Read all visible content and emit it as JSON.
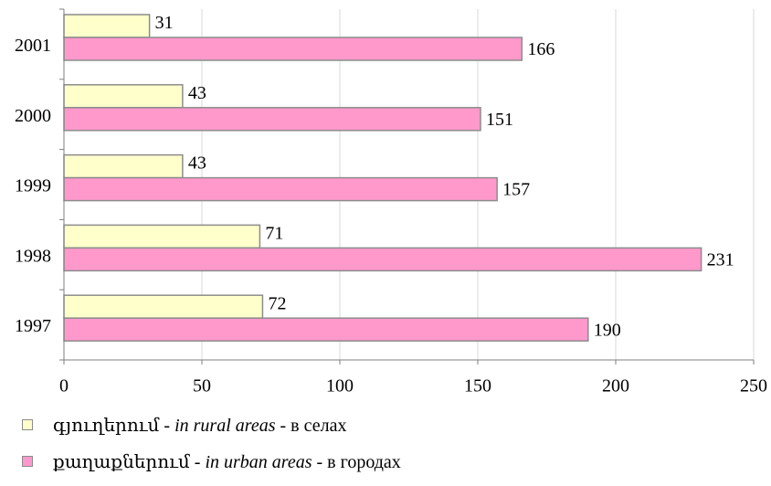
{
  "chart_data": {
    "type": "bar",
    "orientation": "horizontal",
    "categories": [
      "1997",
      "1998",
      "1999",
      "2000",
      "2001"
    ],
    "series": [
      {
        "name": "գյուղերում - in rural areas - в селах",
        "values": [
          72,
          71,
          43,
          43,
          31
        ],
        "color": "#ffffcc"
      },
      {
        "name": "քաղաքներում - in urban areas - в городах",
        "values": [
          190,
          231,
          157,
          151,
          166
        ],
        "color": "#ff99cc"
      }
    ],
    "xlim": [
      0,
      250
    ],
    "xticks": [
      0,
      50,
      100,
      150,
      200,
      250
    ],
    "grid": true,
    "legend_position": "bottom-left",
    "colors": {
      "rural": "#ffffcc",
      "urban": "#ff99cc",
      "bar_border": "#8c8c8c",
      "grid": "#d8d8d8",
      "axis": "#7f7f7f"
    }
  },
  "legend": [
    {
      "native": "գյուղերում",
      "sep1": " - ",
      "en": "in rural areas",
      "sep2": " - ",
      "ru": "в селах"
    },
    {
      "native": "քաղաքներում",
      "sep1": " - ",
      "en": "in urban areas",
      "sep2": " - ",
      "ru": "в городах"
    }
  ]
}
